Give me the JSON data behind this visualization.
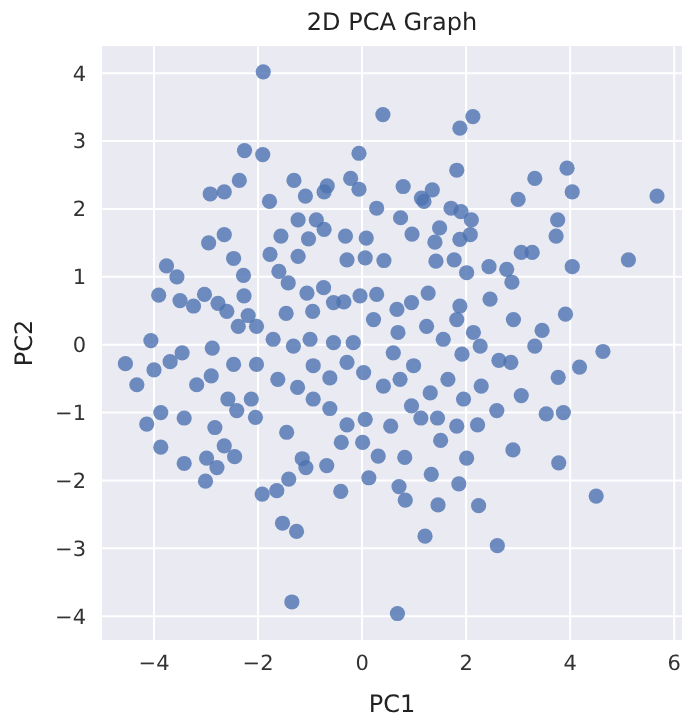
{
  "chart_data": {
    "type": "scatter",
    "title": "2D PCA Graph",
    "xlabel": "PC1",
    "ylabel": "PC2",
    "xlim": [
      -5,
      6.15
    ],
    "ylim": [
      -4.35,
      4.4
    ],
    "xticks": [
      -4,
      -2,
      0,
      2,
      4,
      6
    ],
    "yticks": [
      -4,
      -3,
      -2,
      -1,
      0,
      1,
      2,
      3,
      4
    ],
    "grid": true,
    "marker": "circle",
    "series": [
      {
        "color": "#4c72b0",
        "x": [
          -1.9,
          0.4,
          2.13,
          1.88,
          -2.26,
          -1.91,
          -0.06,
          -2.92,
          -2.65,
          -2.36,
          -1.78,
          -1.31,
          -1.09,
          -0.67,
          -0.73,
          -0.22,
          -0.06,
          0.28,
          0.79,
          1.19,
          1.35,
          1.82,
          1.71,
          1.9,
          2.1,
          3.0,
          3.32,
          3.94,
          4.04,
          5.67,
          3.76,
          3.73,
          3.06,
          3.27,
          5.12,
          4.04,
          2.88,
          3.91,
          3.46,
          3.32,
          4.63,
          4.18,
          3.77,
          3.06,
          3.54,
          3.87,
          3.78,
          4.5,
          2.9,
          2.59,
          2.22,
          2.29,
          2.63,
          1.92,
          2.14,
          2.46,
          2.78,
          2.44,
          2.01,
          1.77,
          1.88,
          2.08,
          1.49,
          0.96,
          0.74,
          1.14,
          1.4,
          1.42,
          1.27,
          0.95,
          0.67,
          0.69,
          0.42,
          0.06,
          -0.29,
          0.08,
          -0.32,
          -1.03,
          -0.73,
          -0.88,
          -1.23,
          -1.56,
          -1.77,
          -1.6,
          -1.42,
          -1.23,
          -1.06,
          -0.74,
          -0.55,
          -0.35,
          -0.04,
          0.28,
          -0.95,
          -1.46,
          -2.19,
          -2.6,
          -3.03,
          -3.56,
          -3.76,
          -3.91,
          -3.5,
          -3.24,
          -2.77,
          -2.27,
          -2.47,
          -2.65,
          -2.95,
          -2.28,
          -4.06,
          -4.55,
          -4.33,
          -4.0,
          -4.14,
          -3.87,
          -3.87,
          -3.42,
          -3.42,
          -3.01,
          -2.99,
          -2.79,
          -2.83,
          -2.65,
          -2.45,
          -2.58,
          -2.41,
          -2.05,
          -2.13,
          -3.18,
          -2.9,
          -2.88,
          -3.46,
          -3.69,
          -2.47,
          -2.03,
          -2.38,
          -2.03,
          -1.92,
          -1.64,
          -1.41,
          -1.53,
          -1.26,
          -1.35,
          0.68,
          1.21,
          2.24,
          2.6,
          1.46,
          1.86,
          1.33,
          0.83,
          0.71,
          0.13,
          -0.41,
          -0.68,
          -1.08,
          -1.15,
          -1.45,
          -1.24,
          -1.62,
          -0.94,
          -0.62,
          -0.29,
          -0.4,
          0.06,
          0.01,
          0.31,
          0.55,
          0.82,
          0.95,
          1.13,
          1.45,
          1.51,
          1.82,
          2.01,
          1.95,
          1.65,
          1.31,
          0.99,
          0.73,
          0.41,
          0.03,
          -0.29,
          -0.62,
          -0.94,
          -1.32,
          -1.71,
          -1.0,
          -0.55,
          -0.17,
          0.22,
          0.6,
          1.24,
          1.56,
          1.82,
          2.27,
          2.91,
          2.86,
          1.88
        ],
        "values": [
          4.02,
          3.39,
          3.36,
          3.19,
          2.86,
          2.8,
          2.82,
          2.22,
          2.25,
          2.42,
          2.11,
          2.42,
          2.19,
          2.34,
          2.25,
          2.45,
          2.29,
          2.01,
          2.33,
          2.11,
          2.28,
          2.57,
          2.01,
          1.96,
          1.84,
          2.14,
          2.45,
          2.6,
          2.25,
          2.19,
          1.84,
          1.6,
          1.36,
          1.36,
          1.25,
          1.15,
          0.92,
          0.45,
          0.21,
          -0.02,
          -0.1,
          -0.33,
          -0.48,
          -0.75,
          -1.02,
          -1.0,
          -1.74,
          -2.23,
          -1.55,
          -0.97,
          -1.18,
          -0.61,
          -0.23,
          -0.14,
          0.18,
          0.67,
          1.11,
          1.15,
          1.06,
          1.25,
          1.55,
          1.62,
          1.72,
          1.63,
          1.87,
          2.16,
          1.51,
          1.23,
          0.76,
          0.62,
          0.52,
          0.18,
          1.24,
          1.28,
          1.25,
          1.57,
          1.6,
          1.56,
          1.7,
          1.84,
          1.84,
          1.6,
          1.33,
          1.08,
          0.91,
          1.3,
          0.76,
          0.84,
          0.62,
          0.63,
          0.72,
          0.74,
          0.49,
          0.46,
          0.43,
          0.49,
          0.74,
          1.0,
          1.16,
          0.73,
          0.65,
          0.57,
          0.61,
          0.72,
          1.27,
          1.62,
          1.5,
          1.02,
          0.06,
          -0.28,
          -0.59,
          -0.37,
          -1.17,
          -1.0,
          -1.51,
          -1.08,
          -1.75,
          -2.01,
          -1.67,
          -1.81,
          -1.22,
          -1.49,
          -1.65,
          -0.8,
          -0.97,
          -1.07,
          -0.8,
          -0.59,
          -0.46,
          -0.05,
          -0.12,
          -0.25,
          -0.29,
          -0.29,
          0.27,
          0.27,
          -2.2,
          -2.15,
          -1.98,
          -2.63,
          -2.75,
          -3.79,
          -3.96,
          -2.82,
          -2.37,
          -2.96,
          -2.36,
          -2.05,
          -1.91,
          -2.29,
          -2.09,
          -1.96,
          -2.16,
          -1.78,
          -1.81,
          -1.68,
          -1.29,
          -0.63,
          -0.51,
          -0.8,
          -0.94,
          -1.18,
          -1.44,
          -1.1,
          -1.44,
          -1.64,
          -1.2,
          -1.66,
          -0.9,
          -1.08,
          -1.08,
          -1.41,
          -1.2,
          -1.67,
          -0.8,
          -0.51,
          -0.71,
          -0.31,
          -0.51,
          -0.61,
          -0.41,
          -0.26,
          -0.49,
          -0.31,
          -0.02,
          0.08,
          0.08,
          0.03,
          0.03,
          0.37,
          -0.12,
          0.27,
          0.08,
          0.37,
          -0.02,
          0.37,
          -0.26,
          0.57
        ]
      }
    ]
  }
}
